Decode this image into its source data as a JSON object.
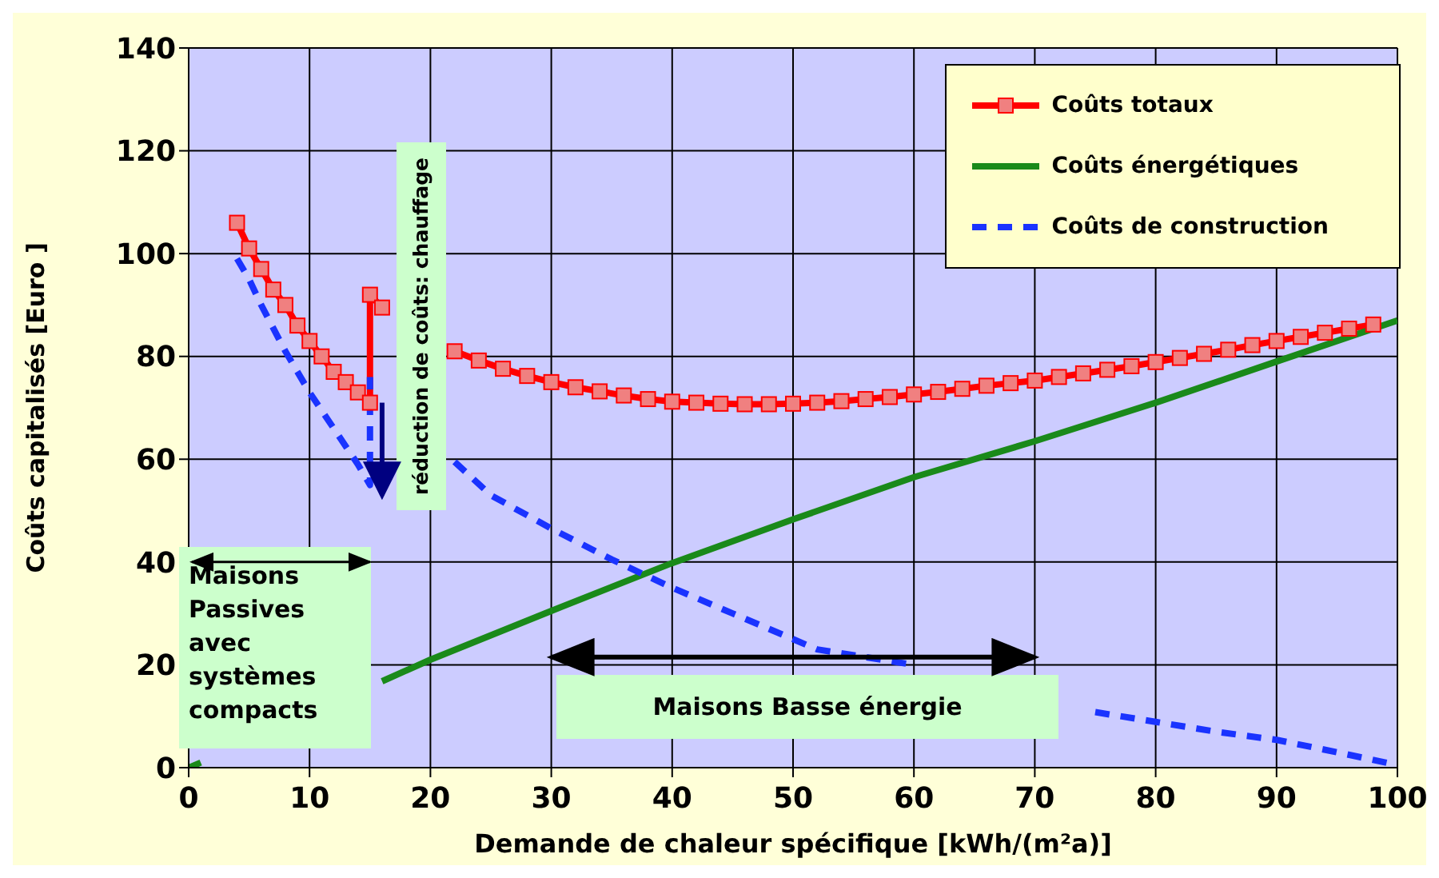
{
  "chart_data": {
    "type": "line",
    "xlabel": "Demande de chaleur spécifique [kWh/(m²a)]",
    "ylabel": "Coûts capitalisés [Euro ]",
    "xlim": [
      0,
      100
    ],
    "xticks": [
      0,
      10,
      20,
      30,
      40,
      50,
      60,
      70,
      80,
      90,
      100
    ],
    "ylim": [
      0,
      140
    ],
    "yticks": [
      0,
      20,
      40,
      60,
      80,
      100,
      120,
      140
    ],
    "grid": true,
    "legend": "top right",
    "annotations": [
      "réduction de coûts: chauffage",
      "Maisons Passives avec systèmes compacts",
      "Maisons Basse énergie"
    ],
    "series": [
      {
        "name": "Coûts totaux",
        "color": "#ff0000",
        "marker": "square",
        "line_style": "solid",
        "x": [
          4,
          5,
          6,
          7,
          8,
          9,
          10,
          11,
          12,
          13,
          14,
          15,
          15,
          16,
          18,
          20,
          22,
          24,
          26,
          28,
          30,
          32,
          34,
          36,
          38,
          40,
          42,
          44,
          46,
          48,
          50,
          52,
          54,
          56,
          58,
          60,
          62,
          64,
          66,
          68,
          70,
          72,
          74,
          76,
          78,
          80,
          82,
          84,
          86,
          88,
          90,
          92,
          94,
          96,
          98
        ],
        "values": [
          106,
          101,
          97,
          93,
          90,
          86,
          83,
          80,
          77,
          75,
          73,
          71,
          92,
          89.5,
          null,
          null,
          81,
          79.2,
          77.6,
          76.2,
          75,
          74,
          73.2,
          72.4,
          71.7,
          71.2,
          71,
          70.8,
          70.7,
          70.7,
          70.8,
          71,
          71.3,
          71.7,
          72.1,
          72.6,
          73.1,
          73.7,
          74.3,
          74.8,
          75.3,
          76,
          76.7,
          77.4,
          78.1,
          78.9,
          79.7,
          80.5,
          81.3,
          82.2,
          83,
          83.8,
          84.6,
          85.4,
          86.2
        ]
      },
      {
        "name": "Coûts énergétiques",
        "color": "#1a8a1a",
        "marker": "none",
        "line_style": "solid",
        "x": [
          0,
          1,
          10,
          16,
          20,
          30,
          40,
          50,
          60,
          70,
          80,
          90,
          100
        ],
        "values": [
          0,
          1,
          null,
          16.8,
          21,
          30.5,
          39.8,
          48.3,
          56.5,
          63.5,
          71,
          79,
          87
        ]
      },
      {
        "name": "Coûts de construction",
        "color": "#1a33ff",
        "marker": "none",
        "line_style": "dashed",
        "x": [
          4,
          5,
          6,
          8,
          10,
          12,
          14,
          15,
          15,
          18,
          22,
          25,
          30,
          35,
          40,
          45,
          50,
          52,
          60,
          65,
          70,
          75,
          80,
          85,
          90,
          95,
          100
        ],
        "values": [
          99,
          95,
          90,
          81,
          73,
          66,
          59,
          55,
          76,
          null,
          59.5,
          53,
          46.5,
          40.5,
          35,
          30,
          25,
          23,
          20,
          null,
          null,
          10.8,
          8.9,
          7,
          5.4,
          3,
          0.5
        ]
      }
    ]
  }
}
